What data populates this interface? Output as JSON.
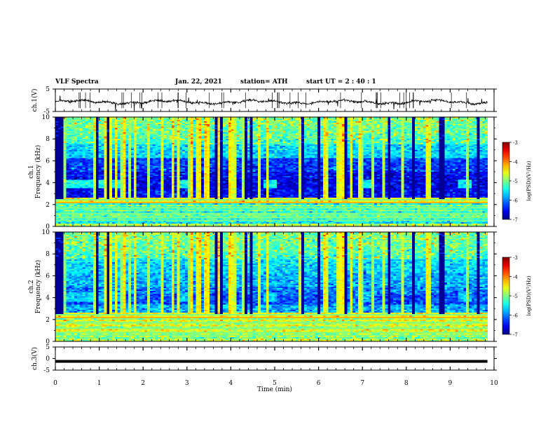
{
  "header": {
    "title": "VLF Spectra",
    "date": "Jan. 22, 2021",
    "station": "station= ATH",
    "start": "start  UT =   2 : 40 : 1"
  },
  "chart_data": [
    {
      "type": "line",
      "name": "ch1-voltage",
      "ylabel": "ch.1(V)",
      "ylim": [
        -5,
        5
      ],
      "yticks": [
        5,
        -5
      ],
      "xlim": [
        0,
        10
      ],
      "x_min": [
        0,
        10
      ],
      "y_baseline": 0,
      "series_color": "#000000"
    },
    {
      "type": "heatmap",
      "name": "ch1-spectrogram",
      "ylabel": "ch.1\nFrequency (kHz)",
      "ylabel_lines": [
        "ch.1",
        "Frequency (kHz)"
      ],
      "ylim": [
        0,
        10
      ],
      "yticks": [
        0,
        2,
        4,
        6,
        8,
        10
      ],
      "xlim": [
        0,
        10
      ],
      "data_xmax": 9.85,
      "colorbar": {
        "label": "log(PSD)(V²/Hz)",
        "range": [
          -7,
          -3
        ],
        "ticks": [
          "-3",
          "-4",
          "-5",
          "-6",
          "-7"
        ]
      },
      "bursts_4khz_min": [
        [
          0.15,
          1.45
        ],
        [
          2.85,
          3.1
        ],
        [
          4.75,
          5.05
        ],
        [
          6.9,
          7.2
        ],
        [
          9.2,
          9.45
        ]
      ]
    },
    {
      "type": "heatmap",
      "name": "ch2-spectrogram",
      "ylabel_lines": [
        "ch.2",
        "Frequency (kHz)"
      ],
      "ylim": [
        0,
        10
      ],
      "yticks": [
        0,
        2,
        4,
        6,
        8,
        10
      ],
      "xlim": [
        0,
        10
      ],
      "data_xmax": 9.85,
      "colorbar": {
        "label": "log(PSD)(V²/Hz)",
        "range": [
          -7,
          -3
        ],
        "ticks": [
          "-3",
          "-4",
          "-5",
          "-6",
          "-7"
        ]
      }
    },
    {
      "type": "line",
      "name": "ch3-voltage",
      "ylabel": "ch.3(V)",
      "ylim": [
        -5,
        5
      ],
      "yticks": [
        5,
        0,
        -5
      ],
      "xlim": [
        0,
        10
      ],
      "xlabel": "Time  (min)",
      "xticks": [
        0,
        1,
        2,
        3,
        4,
        5,
        6,
        7,
        8,
        9,
        10
      ],
      "level": -1.2,
      "series_color": "#000000"
    }
  ]
}
